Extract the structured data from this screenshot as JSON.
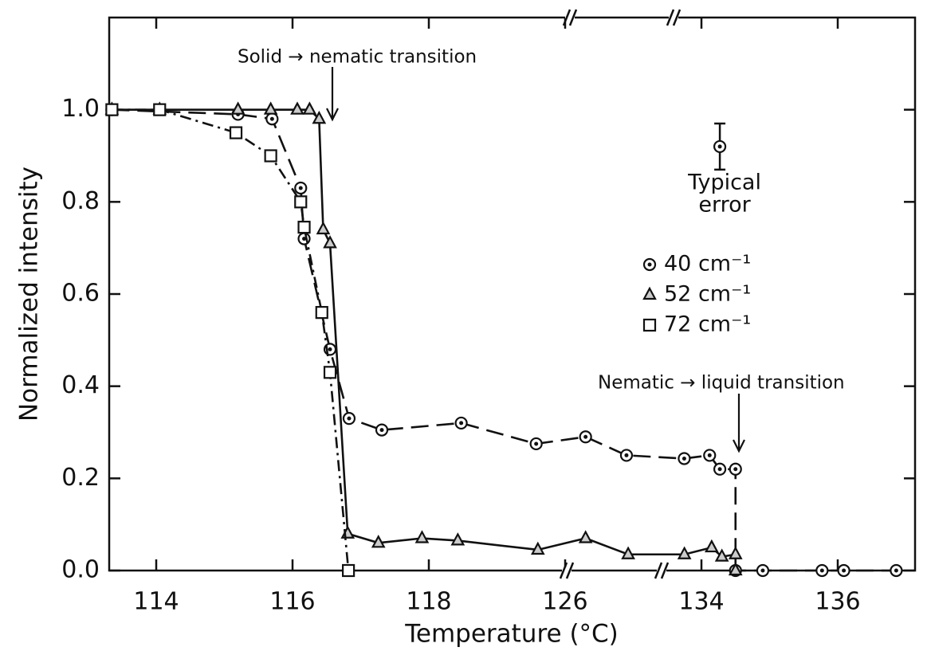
{
  "chart_data": {
    "type": "line",
    "x_label": "Temperature  (°C)",
    "y_label": "Normalized intensity",
    "xlim": [
      113.3,
      137.15
    ],
    "xticks": [
      114,
      116,
      118,
      126,
      134,
      136
    ],
    "x_broken": true,
    "ylim": [
      0,
      1.2
    ],
    "yticks": [
      {
        "value": 0,
        "label": "0.0"
      },
      0.2,
      0.4,
      0.6,
      0.8,
      {
        "value": 1,
        "label": "1.0"
      }
    ],
    "grid": false,
    "annotations": [
      "Solid → nematic transition",
      "Nematic → liquid transition"
    ],
    "error_bar": {
      "labels": [
        "Typical",
        "error"
      ],
      "x": 134.27,
      "y": 0.92,
      "error": 0.05
    },
    "series": [
      {
        "name": "40 cm⁻¹",
        "color": "#111",
        "marker": "circle",
        "dash": "22,10",
        "x": [
          113.34,
          115.2,
          115.7,
          116.12,
          116.17,
          116.55,
          116.83,
          117.31,
          119.9,
          124.3,
          127.2,
          129.6,
          132.99,
          134.12,
          134.27,
          134.5,
          134.5,
          134.9,
          135.77,
          136.09,
          136.87
        ],
        "values": [
          1.0,
          0.99,
          0.98,
          0.83,
          0.72,
          0.48,
          0.33,
          0.305,
          0.32,
          0.275,
          0.29,
          0.25,
          0.243,
          0.25,
          0.22,
          0.22,
          0,
          0,
          0,
          0,
          0
        ]
      },
      {
        "name": "52 cm⁻¹",
        "color": "#111",
        "marker": "triangle",
        "dash": "none",
        "x": [
          113.34,
          114.05,
          115.2,
          115.68,
          116.07,
          116.25,
          116.39,
          116.45,
          116.55,
          116.81,
          117.26,
          117.9,
          119.7,
          124.4,
          127.2,
          129.7,
          133.0,
          134.15,
          134.3,
          134.5,
          134.5
        ],
        "values": [
          1.0,
          1.0,
          1.0,
          1.0,
          1.0,
          1.0,
          0.98,
          0.74,
          0.71,
          0.08,
          0.06,
          0.07,
          0.065,
          0.045,
          0.07,
          0.035,
          0.035,
          0.05,
          0.03,
          0.035,
          0
        ]
      },
      {
        "name": "72 cm⁻¹",
        "color": "#111",
        "marker": "square",
        "dash": "14,6,3,6",
        "x": [
          113.34,
          114.05,
          115.17,
          115.68,
          116.12,
          116.17,
          116.43,
          116.55,
          116.82
        ],
        "values": [
          1.0,
          1.0,
          0.95,
          0.9,
          0.8,
          0.745,
          0.56,
          0.43,
          0
        ]
      }
    ]
  }
}
